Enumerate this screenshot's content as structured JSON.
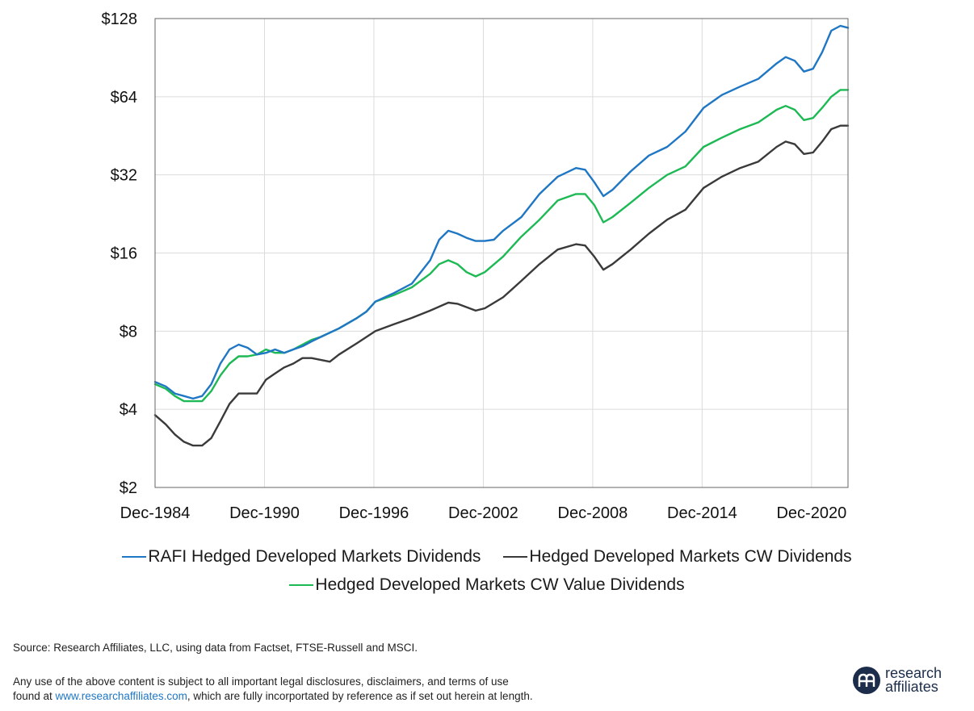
{
  "chart_data": {
    "type": "line",
    "y_scale": "log2",
    "ylim": [
      2,
      128
    ],
    "xlim": [
      1984.917,
      2022.917
    ],
    "grid": true,
    "legend_position": "bottom",
    "y_ticks": [
      {
        "value": 2,
        "label": "$2"
      },
      {
        "value": 4,
        "label": "$4"
      },
      {
        "value": 8,
        "label": "$8"
      },
      {
        "value": 16,
        "label": "$16"
      },
      {
        "value": 32,
        "label": "$32"
      },
      {
        "value": 64,
        "label": "$64"
      },
      {
        "value": 128,
        "label": "$128"
      }
    ],
    "x_ticks": [
      {
        "value": 1984.917,
        "label": "Dec-1984"
      },
      {
        "value": 1990.917,
        "label": "Dec-1990"
      },
      {
        "value": 1996.917,
        "label": "Dec-1996"
      },
      {
        "value": 2002.917,
        "label": "Dec-2002"
      },
      {
        "value": 2008.917,
        "label": "Dec-2008"
      },
      {
        "value": 2014.917,
        "label": "Dec-2014"
      },
      {
        "value": 2020.917,
        "label": "Dec-2020"
      }
    ],
    "series": [
      {
        "name": "RAFI Hedged Developed Markets Dividends",
        "color": "#1f77c4",
        "points": [
          [
            1984.917,
            5.1
          ],
          [
            1985.5,
            4.9
          ],
          [
            1986.0,
            4.6
          ],
          [
            1986.5,
            4.5
          ],
          [
            1987.0,
            4.4
          ],
          [
            1987.5,
            4.5
          ],
          [
            1988.0,
            5.0
          ],
          [
            1988.5,
            6.0
          ],
          [
            1989.0,
            6.8
          ],
          [
            1989.5,
            7.1
          ],
          [
            1990.0,
            6.9
          ],
          [
            1990.5,
            6.5
          ],
          [
            1991.0,
            6.6
          ],
          [
            1991.5,
            6.8
          ],
          [
            1992.0,
            6.6
          ],
          [
            1992.5,
            6.8
          ],
          [
            1993.0,
            7.0
          ],
          [
            1993.5,
            7.3
          ],
          [
            1994.0,
            7.6
          ],
          [
            1995.0,
            8.2
          ],
          [
            1996.0,
            9.0
          ],
          [
            1996.5,
            9.5
          ],
          [
            1997.0,
            10.4
          ],
          [
            1998.0,
            11.2
          ],
          [
            1999.0,
            12.2
          ],
          [
            2000.0,
            15.0
          ],
          [
            2000.5,
            18.0
          ],
          [
            2001.0,
            19.5
          ],
          [
            2001.5,
            19.0
          ],
          [
            2002.0,
            18.3
          ],
          [
            2002.5,
            17.8
          ],
          [
            2003.0,
            17.8
          ],
          [
            2003.5,
            18.0
          ],
          [
            2004.0,
            19.5
          ],
          [
            2005.0,
            22.0
          ],
          [
            2006.0,
            27.0
          ],
          [
            2007.0,
            31.5
          ],
          [
            2008.0,
            34.0
          ],
          [
            2008.5,
            33.5
          ],
          [
            2009.0,
            30.0
          ],
          [
            2009.5,
            26.5
          ],
          [
            2010.0,
            28.0
          ],
          [
            2011.0,
            33.0
          ],
          [
            2012.0,
            38.0
          ],
          [
            2013.0,
            41.0
          ],
          [
            2014.0,
            47.0
          ],
          [
            2015.0,
            58.0
          ],
          [
            2016.0,
            65.0
          ],
          [
            2017.0,
            70.0
          ],
          [
            2018.0,
            75.0
          ],
          [
            2019.0,
            86.0
          ],
          [
            2019.5,
            91.0
          ],
          [
            2020.0,
            88.0
          ],
          [
            2020.5,
            80.0
          ],
          [
            2021.0,
            82.0
          ],
          [
            2021.5,
            95.0
          ],
          [
            2022.0,
            115.0
          ],
          [
            2022.5,
            120.0
          ],
          [
            2022.917,
            118.0
          ]
        ]
      },
      {
        "name": "Hedged Developed Markets CW Dividends",
        "color": "#3a3a3a",
        "points": [
          [
            1984.917,
            3.8
          ],
          [
            1985.5,
            3.5
          ],
          [
            1986.0,
            3.2
          ],
          [
            1986.5,
            3.0
          ],
          [
            1987.0,
            2.9
          ],
          [
            1987.5,
            2.9
          ],
          [
            1988.0,
            3.1
          ],
          [
            1988.5,
            3.6
          ],
          [
            1989.0,
            4.2
          ],
          [
            1989.5,
            4.6
          ],
          [
            1990.0,
            4.6
          ],
          [
            1990.5,
            4.6
          ],
          [
            1991.0,
            5.2
          ],
          [
            1991.5,
            5.5
          ],
          [
            1992.0,
            5.8
          ],
          [
            1992.5,
            6.0
          ],
          [
            1993.0,
            6.3
          ],
          [
            1993.5,
            6.3
          ],
          [
            1994.0,
            6.2
          ],
          [
            1994.5,
            6.1
          ],
          [
            1995.0,
            6.5
          ],
          [
            1996.0,
            7.2
          ],
          [
            1997.0,
            8.0
          ],
          [
            1998.0,
            8.5
          ],
          [
            1999.0,
            9.0
          ],
          [
            2000.0,
            9.6
          ],
          [
            2001.0,
            10.3
          ],
          [
            2001.5,
            10.2
          ],
          [
            2002.0,
            9.9
          ],
          [
            2002.5,
            9.6
          ],
          [
            2003.0,
            9.8
          ],
          [
            2004.0,
            10.8
          ],
          [
            2005.0,
            12.5
          ],
          [
            2006.0,
            14.5
          ],
          [
            2007.0,
            16.5
          ],
          [
            2008.0,
            17.3
          ],
          [
            2008.5,
            17.1
          ],
          [
            2009.0,
            15.5
          ],
          [
            2009.5,
            13.8
          ],
          [
            2010.0,
            14.5
          ],
          [
            2011.0,
            16.5
          ],
          [
            2012.0,
            19.0
          ],
          [
            2013.0,
            21.5
          ],
          [
            2014.0,
            23.5
          ],
          [
            2015.0,
            28.5
          ],
          [
            2016.0,
            31.5
          ],
          [
            2017.0,
            34.0
          ],
          [
            2018.0,
            36.0
          ],
          [
            2019.0,
            41.0
          ],
          [
            2019.5,
            43.0
          ],
          [
            2020.0,
            42.0
          ],
          [
            2020.5,
            38.5
          ],
          [
            2021.0,
            39.0
          ],
          [
            2021.5,
            43.0
          ],
          [
            2022.0,
            48.0
          ],
          [
            2022.5,
            49.5
          ],
          [
            2022.917,
            49.5
          ]
        ]
      },
      {
        "name": "Hedged Developed Markets CW Value Dividends",
        "color": "#1db954",
        "points": [
          [
            1984.917,
            5.0
          ],
          [
            1985.5,
            4.8
          ],
          [
            1986.0,
            4.5
          ],
          [
            1986.5,
            4.3
          ],
          [
            1987.0,
            4.3
          ],
          [
            1987.5,
            4.3
          ],
          [
            1988.0,
            4.7
          ],
          [
            1988.5,
            5.4
          ],
          [
            1989.0,
            6.0
          ],
          [
            1989.5,
            6.4
          ],
          [
            1990.0,
            6.4
          ],
          [
            1990.5,
            6.5
          ],
          [
            1991.0,
            6.8
          ],
          [
            1991.5,
            6.6
          ],
          [
            1992.0,
            6.6
          ],
          [
            1992.5,
            6.8
          ],
          [
            1993.0,
            7.1
          ],
          [
            1993.5,
            7.4
          ],
          [
            1994.0,
            7.6
          ],
          [
            1995.0,
            8.2
          ],
          [
            1996.0,
            9.0
          ],
          [
            1996.5,
            9.5
          ],
          [
            1997.0,
            10.4
          ],
          [
            1998.0,
            11.0
          ],
          [
            1999.0,
            11.8
          ],
          [
            2000.0,
            13.3
          ],
          [
            2000.5,
            14.5
          ],
          [
            2001.0,
            15.0
          ],
          [
            2001.5,
            14.5
          ],
          [
            2002.0,
            13.5
          ],
          [
            2002.5,
            13.0
          ],
          [
            2003.0,
            13.5
          ],
          [
            2004.0,
            15.5
          ],
          [
            2005.0,
            18.5
          ],
          [
            2006.0,
            21.5
          ],
          [
            2007.0,
            25.5
          ],
          [
            2008.0,
            27.0
          ],
          [
            2008.5,
            27.0
          ],
          [
            2009.0,
            24.5
          ],
          [
            2009.5,
            21.0
          ],
          [
            2010.0,
            22.0
          ],
          [
            2011.0,
            25.0
          ],
          [
            2012.0,
            28.5
          ],
          [
            2013.0,
            32.0
          ],
          [
            2014.0,
            34.5
          ],
          [
            2015.0,
            41.0
          ],
          [
            2016.0,
            44.5
          ],
          [
            2017.0,
            48.0
          ],
          [
            2018.0,
            51.0
          ],
          [
            2019.0,
            57.0
          ],
          [
            2019.5,
            59.0
          ],
          [
            2020.0,
            57.0
          ],
          [
            2020.5,
            52.0
          ],
          [
            2021.0,
            53.0
          ],
          [
            2021.5,
            58.0
          ],
          [
            2022.0,
            64.0
          ],
          [
            2022.5,
            68.0
          ],
          [
            2022.917,
            68.0
          ]
        ]
      }
    ]
  },
  "legend": {
    "row1": [
      {
        "label": "RAFI Hedged Developed Markets Dividends",
        "color": "#1f77c4"
      },
      {
        "label": "Hedged Developed Markets CW Dividends",
        "color": "#3a3a3a"
      }
    ],
    "row2": [
      {
        "label": "Hedged Developed Markets CW Value Dividends",
        "color": "#1db954"
      }
    ]
  },
  "footer": {
    "source": "Source: Research Affiliates, LLC, using data from Factset, FTSE-Russell and MSCI.",
    "disclaimer_line1": "Any use of the above content is subject to all important legal disclosures, disclaimers, and terms of use",
    "disclaimer_line2_prefix": "found at ",
    "disclaimer_link": "www.researchaffiliates.com",
    "disclaimer_line2_suffix": ", which are fully incorportated by reference as if set out herein at length."
  },
  "logo": {
    "line1": "research",
    "line2": "affiliates",
    "mark_icon": "research-affiliates-logo-mark-icon",
    "mark_color": "#1b2d4a"
  }
}
